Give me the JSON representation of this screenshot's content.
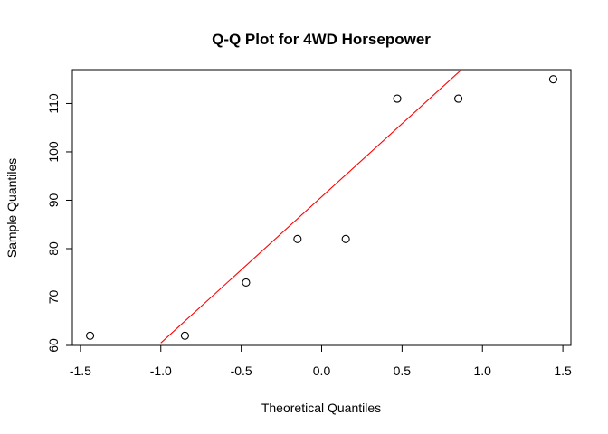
{
  "chart_data": {
    "type": "scatter",
    "title": "Q-Q Plot for 4WD Horsepower",
    "xlabel": "Theoretical Quantiles",
    "ylabel": "Sample Quantiles",
    "xlim": [
      -1.55,
      1.55
    ],
    "ylim": [
      60,
      117
    ],
    "xticks": [
      -1.5,
      -1.0,
      -0.5,
      0.0,
      0.5,
      1.0,
      1.5
    ],
    "xtick_labels": [
      "-1.5",
      "-1.0",
      "-0.5",
      "0.0",
      "0.5",
      "1.0",
      "1.5"
    ],
    "yticks": [
      60,
      70,
      80,
      90,
      100,
      110
    ],
    "ytick_labels": [
      "60",
      "70",
      "80",
      "90",
      "100",
      "110"
    ],
    "points": {
      "x": [
        -1.44,
        -0.85,
        -0.47,
        -0.15,
        0.15,
        0.47,
        0.85,
        1.44
      ],
      "y": [
        62,
        62,
        73,
        82,
        82,
        111,
        111,
        115
      ]
    },
    "reference_line": {
      "color": "#ff0000",
      "x1": -1.0,
      "y1": 60.5,
      "x2": 0.87,
      "y2": 117
    },
    "point_color": "#000000"
  }
}
